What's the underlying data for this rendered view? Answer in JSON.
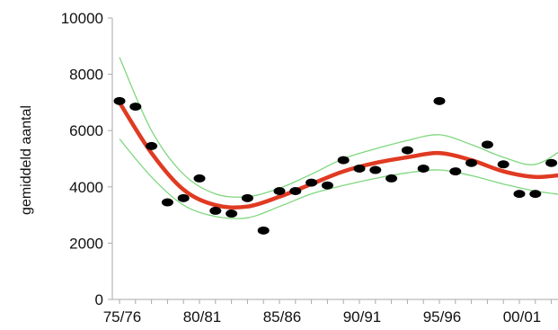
{
  "chart_data": {
    "type": "scatter",
    "ylabel": "gemiddeld aantal",
    "ylim": [
      0,
      10000
    ],
    "y_ticks": [
      {
        "value": 0,
        "label": "0"
      },
      {
        "value": 2000,
        "label": "2000"
      },
      {
        "value": 4000,
        "label": "4000"
      },
      {
        "value": 6000,
        "label": "6000"
      },
      {
        "value": 8000,
        "label": "8000"
      },
      {
        "value": 10000,
        "label": "10000"
      }
    ],
    "x_ticks": [
      {
        "value": 0,
        "label": "75/76"
      },
      {
        "value": 5,
        "label": "80/81"
      },
      {
        "value": 10,
        "label": "85/86"
      },
      {
        "value": 15,
        "label": "90/91"
      },
      {
        "value": 20,
        "label": "95/96"
      },
      {
        "value": 25,
        "label": "00/01"
      }
    ],
    "xlim": [
      -0.4,
      28
    ],
    "grid": false,
    "points": {
      "x": [
        0,
        1,
        2,
        3,
        4,
        5,
        6,
        7,
        8,
        9,
        10,
        11,
        12,
        13,
        14,
        15,
        16,
        17,
        18,
        19,
        20,
        21,
        22,
        23,
        24,
        25,
        26,
        27,
        28
      ],
      "y": [
        7050,
        6850,
        5450,
        3450,
        3600,
        4300,
        3150,
        3050,
        3600,
        2450,
        3850,
        3850,
        4150,
        4050,
        4950,
        4650,
        4600,
        4300,
        5300,
        4650,
        7050,
        4550,
        4850,
        5500,
        4800,
        3750,
        3750,
        4850,
        4750
      ],
      "color": "#000000"
    },
    "trend": {
      "x": [
        0,
        2,
        4,
        6,
        8,
        10,
        12,
        14,
        16,
        18,
        20,
        22,
        24,
        26,
        28
      ],
      "y": [
        7000,
        5200,
        3900,
        3350,
        3300,
        3650,
        4100,
        4550,
        4850,
        5050,
        5200,
        4950,
        4550,
        4350,
        4450
      ],
      "color": "#e03a22"
    },
    "confidence_band": {
      "upper": [
        8600,
        6000,
        4450,
        3750,
        3650,
        3950,
        4450,
        5000,
        5350,
        5650,
        5850,
        5500,
        5050,
        4800,
        5450
      ],
      "lower": [
        5700,
        4350,
        3350,
        2950,
        2900,
        3300,
        3750,
        4050,
        4300,
        4500,
        4600,
        4400,
        4100,
        3850,
        3700
      ],
      "color": "#7fd77f"
    }
  }
}
